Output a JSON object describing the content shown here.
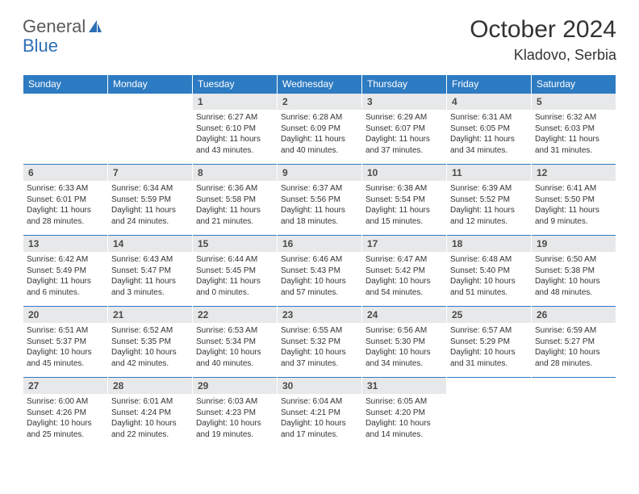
{
  "brand": {
    "part1": "General",
    "part2": "Blue"
  },
  "title": "October 2024",
  "location": "Kladovo, Serbia",
  "colors": {
    "header_bg": "#2d7bc2",
    "header_fg": "#ffffff",
    "daynum_bg": "#e7e8e9",
    "cell_border": "#2d7bc2",
    "logo_gray": "#5a5a5a",
    "logo_blue": "#2d6fb5"
  },
  "weekdays": [
    "Sunday",
    "Monday",
    "Tuesday",
    "Wednesday",
    "Thursday",
    "Friday",
    "Saturday"
  ],
  "weeks": [
    [
      {
        "empty": true
      },
      {
        "empty": true
      },
      {
        "n": "1",
        "sr": "6:27 AM",
        "ss": "6:10 PM",
        "dl": "11 hours and 43 minutes."
      },
      {
        "n": "2",
        "sr": "6:28 AM",
        "ss": "6:09 PM",
        "dl": "11 hours and 40 minutes."
      },
      {
        "n": "3",
        "sr": "6:29 AM",
        "ss": "6:07 PM",
        "dl": "11 hours and 37 minutes."
      },
      {
        "n": "4",
        "sr": "6:31 AM",
        "ss": "6:05 PM",
        "dl": "11 hours and 34 minutes."
      },
      {
        "n": "5",
        "sr": "6:32 AM",
        "ss": "6:03 PM",
        "dl": "11 hours and 31 minutes."
      }
    ],
    [
      {
        "n": "6",
        "sr": "6:33 AM",
        "ss": "6:01 PM",
        "dl": "11 hours and 28 minutes."
      },
      {
        "n": "7",
        "sr": "6:34 AM",
        "ss": "5:59 PM",
        "dl": "11 hours and 24 minutes."
      },
      {
        "n": "8",
        "sr": "6:36 AM",
        "ss": "5:58 PM",
        "dl": "11 hours and 21 minutes."
      },
      {
        "n": "9",
        "sr": "6:37 AM",
        "ss": "5:56 PM",
        "dl": "11 hours and 18 minutes."
      },
      {
        "n": "10",
        "sr": "6:38 AM",
        "ss": "5:54 PM",
        "dl": "11 hours and 15 minutes."
      },
      {
        "n": "11",
        "sr": "6:39 AM",
        "ss": "5:52 PM",
        "dl": "11 hours and 12 minutes."
      },
      {
        "n": "12",
        "sr": "6:41 AM",
        "ss": "5:50 PM",
        "dl": "11 hours and 9 minutes."
      }
    ],
    [
      {
        "n": "13",
        "sr": "6:42 AM",
        "ss": "5:49 PM",
        "dl": "11 hours and 6 minutes."
      },
      {
        "n": "14",
        "sr": "6:43 AM",
        "ss": "5:47 PM",
        "dl": "11 hours and 3 minutes."
      },
      {
        "n": "15",
        "sr": "6:44 AM",
        "ss": "5:45 PM",
        "dl": "11 hours and 0 minutes."
      },
      {
        "n": "16",
        "sr": "6:46 AM",
        "ss": "5:43 PM",
        "dl": "10 hours and 57 minutes."
      },
      {
        "n": "17",
        "sr": "6:47 AM",
        "ss": "5:42 PM",
        "dl": "10 hours and 54 minutes."
      },
      {
        "n": "18",
        "sr": "6:48 AM",
        "ss": "5:40 PM",
        "dl": "10 hours and 51 minutes."
      },
      {
        "n": "19",
        "sr": "6:50 AM",
        "ss": "5:38 PM",
        "dl": "10 hours and 48 minutes."
      }
    ],
    [
      {
        "n": "20",
        "sr": "6:51 AM",
        "ss": "5:37 PM",
        "dl": "10 hours and 45 minutes."
      },
      {
        "n": "21",
        "sr": "6:52 AM",
        "ss": "5:35 PM",
        "dl": "10 hours and 42 minutes."
      },
      {
        "n": "22",
        "sr": "6:53 AM",
        "ss": "5:34 PM",
        "dl": "10 hours and 40 minutes."
      },
      {
        "n": "23",
        "sr": "6:55 AM",
        "ss": "5:32 PM",
        "dl": "10 hours and 37 minutes."
      },
      {
        "n": "24",
        "sr": "6:56 AM",
        "ss": "5:30 PM",
        "dl": "10 hours and 34 minutes."
      },
      {
        "n": "25",
        "sr": "6:57 AM",
        "ss": "5:29 PM",
        "dl": "10 hours and 31 minutes."
      },
      {
        "n": "26",
        "sr": "6:59 AM",
        "ss": "5:27 PM",
        "dl": "10 hours and 28 minutes."
      }
    ],
    [
      {
        "n": "27",
        "sr": "6:00 AM",
        "ss": "4:26 PM",
        "dl": "10 hours and 25 minutes."
      },
      {
        "n": "28",
        "sr": "6:01 AM",
        "ss": "4:24 PM",
        "dl": "10 hours and 22 minutes."
      },
      {
        "n": "29",
        "sr": "6:03 AM",
        "ss": "4:23 PM",
        "dl": "10 hours and 19 minutes."
      },
      {
        "n": "30",
        "sr": "6:04 AM",
        "ss": "4:21 PM",
        "dl": "10 hours and 17 minutes."
      },
      {
        "n": "31",
        "sr": "6:05 AM",
        "ss": "4:20 PM",
        "dl": "10 hours and 14 minutes."
      },
      {
        "empty": true
      },
      {
        "empty": true
      }
    ]
  ],
  "labels": {
    "sunrise": "Sunrise:",
    "sunset": "Sunset:",
    "daylight": "Daylight:"
  }
}
